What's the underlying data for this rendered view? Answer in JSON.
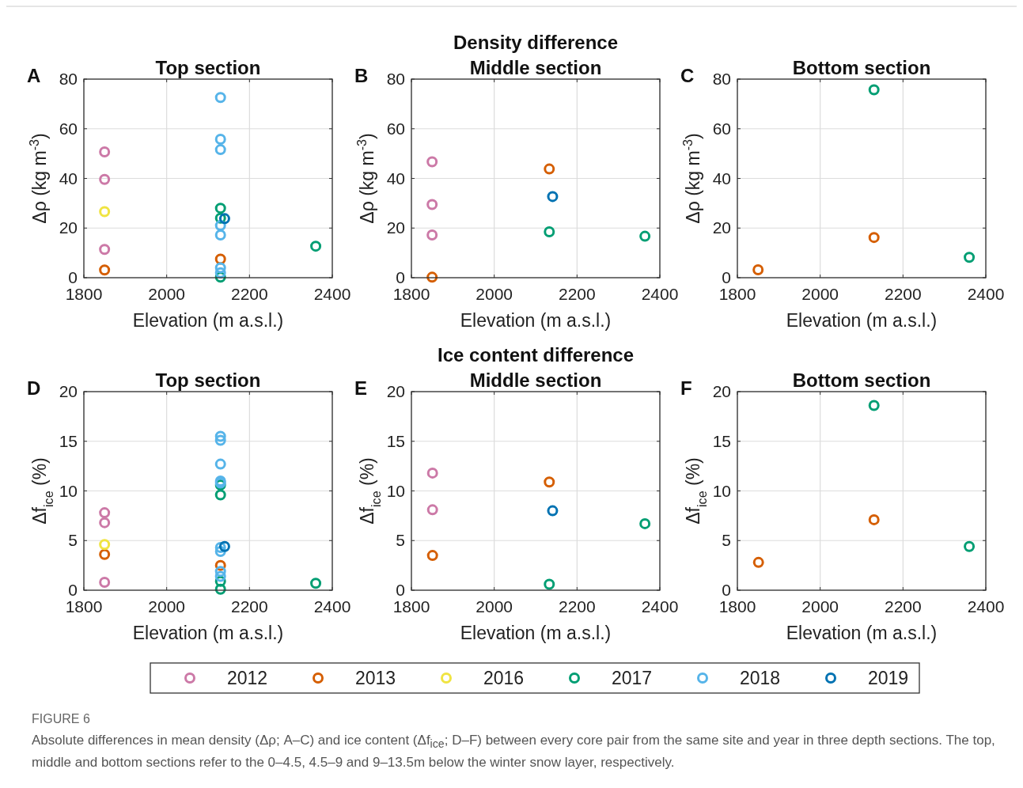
{
  "chart_data": [
    {
      "type": "scatter",
      "title": "Top section",
      "xlabel": "Elevation (m a.s.l.)",
      "ylabel": "Δρ (kg m$^{-3}$)",
      "xlim": [
        1800,
        2400
      ],
      "xticks": [
        1800,
        2000,
        2200,
        2400
      ],
      "ylim": [
        0,
        80
      ],
      "yticks": [
        0,
        20,
        40,
        60,
        80
      ],
      "grid": true,
      "marker": "circle",
      "legend": "bottom",
      "annotations": [
        "A"
      ],
      "series": [
        {
          "name": "2012",
          "color": "#cc79a7",
          "x": [
            1850,
            1850,
            1850
          ],
          "values": [
            50.7,
            39.6,
            11.4
          ]
        },
        {
          "name": "2013",
          "color": "#d55e00",
          "x": [
            1850,
            2130
          ],
          "values": [
            3.1,
            7.5
          ]
        },
        {
          "name": "2016",
          "color": "#f0e442",
          "x": [
            1850
          ],
          "values": [
            26.6
          ]
        },
        {
          "name": "2017",
          "color": "#009e73",
          "x": [
            2130,
            2130,
            2130,
            2360
          ],
          "values": [
            28,
            24,
            0.2,
            12.7
          ]
        },
        {
          "name": "2018",
          "color": "#56b4e9",
          "x": [
            2130,
            2130,
            2130,
            2130,
            2130,
            2130,
            2130
          ],
          "values": [
            72.6,
            55.8,
            51.6,
            21,
            17.2,
            4,
            2
          ]
        },
        {
          "name": "2019",
          "color": "#0072b2",
          "x": [
            2140
          ],
          "values": [
            23.8
          ]
        }
      ]
    },
    {
      "type": "scatter",
      "title": "Density difference",
      "subtitle": "Middle section",
      "xlabel": "Elevation (m a.s.l.)",
      "ylabel": "Δρ (kg m$^{-3}$)",
      "xlim": [
        1800,
        2400
      ],
      "xticks": [
        1800,
        2000,
        2200,
        2400
      ],
      "ylim": [
        0,
        80
      ],
      "yticks": [
        0,
        20,
        40,
        60,
        80
      ],
      "grid": true,
      "marker": "circle",
      "legend": "bottom",
      "annotations": [
        "B"
      ],
      "series": [
        {
          "name": "2012",
          "color": "#cc79a7",
          "x": [
            1850,
            1850,
            1850
          ],
          "values": [
            46.7,
            29.5,
            17.2
          ]
        },
        {
          "name": "2013",
          "color": "#d55e00",
          "x": [
            1850,
            2133
          ],
          "values": [
            0.2,
            43.8
          ]
        },
        {
          "name": "2017",
          "color": "#009e73",
          "x": [
            2133,
            2364
          ],
          "values": [
            18.5,
            16.7
          ]
        },
        {
          "name": "2019",
          "color": "#0072b2",
          "x": [
            2141
          ],
          "values": [
            32.7
          ]
        }
      ]
    },
    {
      "type": "scatter",
      "title": "Bottom section",
      "xlabel": "Elevation (m a.s.l.)",
      "ylabel": "Δρ (kg m$^{-3}$)",
      "xlim": [
        1800,
        2400
      ],
      "xticks": [
        1800,
        2000,
        2200,
        2400
      ],
      "ylim": [
        0,
        80
      ],
      "yticks": [
        0,
        20,
        40,
        60,
        80
      ],
      "grid": true,
      "marker": "circle",
      "legend": "bottom",
      "annotations": [
        "C"
      ],
      "series": [
        {
          "name": "2013",
          "color": "#d55e00",
          "x": [
            1850,
            2130
          ],
          "values": [
            3.2,
            16.2
          ]
        },
        {
          "name": "2017",
          "color": "#009e73",
          "x": [
            2130,
            2360
          ],
          "values": [
            75.7,
            8.2
          ]
        }
      ]
    },
    {
      "type": "scatter",
      "title": "Top section",
      "xlabel": "Elevation (m a.s.l.)",
      "ylabel": "Δf$_{ice}$ (%)",
      "xlim": [
        1800,
        2400
      ],
      "xticks": [
        1800,
        2000,
        2200,
        2400
      ],
      "ylim": [
        0,
        20
      ],
      "yticks": [
        0,
        5,
        10,
        15,
        20
      ],
      "grid": true,
      "marker": "circle",
      "legend": "bottom",
      "annotations": [
        "D"
      ],
      "series": [
        {
          "name": "2012",
          "color": "#cc79a7",
          "x": [
            1850,
            1850,
            1850
          ],
          "values": [
            7.8,
            6.8,
            0.8
          ]
        },
        {
          "name": "2013",
          "color": "#d55e00",
          "x": [
            1850,
            2130
          ],
          "values": [
            3.6,
            2.5
          ]
        },
        {
          "name": "2016",
          "color": "#f0e442",
          "x": [
            1850
          ],
          "values": [
            4.6
          ]
        },
        {
          "name": "2017",
          "color": "#009e73",
          "x": [
            2130,
            2130,
            2130,
            2130,
            2360
          ],
          "values": [
            10.6,
            9.6,
            0.9,
            0.1,
            0.7
          ]
        },
        {
          "name": "2018",
          "color": "#56b4e9",
          "x": [
            2130,
            2130,
            2130,
            2130,
            2130,
            2130,
            2130,
            2130,
            2130
          ],
          "values": [
            15.5,
            15.1,
            12.7,
            11,
            10.8,
            4.3,
            3.9,
            1.9,
            1.4
          ]
        },
        {
          "name": "2019",
          "color": "#0072b2",
          "x": [
            2140
          ],
          "values": [
            4.4
          ]
        }
      ]
    },
    {
      "type": "scatter",
      "title": "Ice content difference",
      "subtitle": "Middle section",
      "xlabel": "Elevation (m a.s.l.)",
      "ylabel": "Δf$_{ice}$ (%)",
      "xlim": [
        1800,
        2400
      ],
      "xticks": [
        1800,
        2000,
        2200,
        2400
      ],
      "ylim": [
        0,
        20
      ],
      "yticks": [
        0,
        5,
        10,
        15,
        20
      ],
      "grid": true,
      "marker": "circle",
      "legend": "bottom",
      "annotations": [
        "E"
      ],
      "series": [
        {
          "name": "2012",
          "color": "#cc79a7",
          "x": [
            1851,
            1851
          ],
          "values": [
            11.8,
            8.1
          ]
        },
        {
          "name": "2013",
          "color": "#d55e00",
          "x": [
            1851,
            2133
          ],
          "values": [
            3.5,
            10.9
          ]
        },
        {
          "name": "2017",
          "color": "#009e73",
          "x": [
            2133,
            2364
          ],
          "values": [
            0.6,
            6.7
          ]
        },
        {
          "name": "2019",
          "color": "#0072b2",
          "x": [
            2141
          ],
          "values": [
            8.0
          ]
        }
      ]
    },
    {
      "type": "scatter",
      "title": "Bottom section",
      "xlabel": "Elevation (m a.s.l.)",
      "ylabel": "Δf$_{ice}$ (%)",
      "xlim": [
        1800,
        2400
      ],
      "xticks": [
        1800,
        2000,
        2200,
        2400
      ],
      "ylim": [
        0,
        20
      ],
      "yticks": [
        0,
        5,
        10,
        15,
        20
      ],
      "grid": true,
      "marker": "circle",
      "legend": "bottom",
      "annotations": [
        "F",
        "FIGURE 6",
        "Absolute differences in mean density (Δρ; A–C) and ice content (Δf$_{ice}$; D–F) between every core pair from the same site and year in three depth sections. The top, middle and bottom sections refer to the 0–4.5, 4.5–9 and 9–13.5m below the winter snow layer, respectively."
      ],
      "series": [
        {
          "name": "2013",
          "color": "#d55e00",
          "x": [
            1851,
            2130
          ],
          "values": [
            2.8,
            7.1
          ]
        },
        {
          "name": "2017",
          "color": "#009e73",
          "x": [
            2130,
            2360
          ],
          "values": [
            18.6,
            4.4
          ]
        }
      ]
    }
  ]
}
